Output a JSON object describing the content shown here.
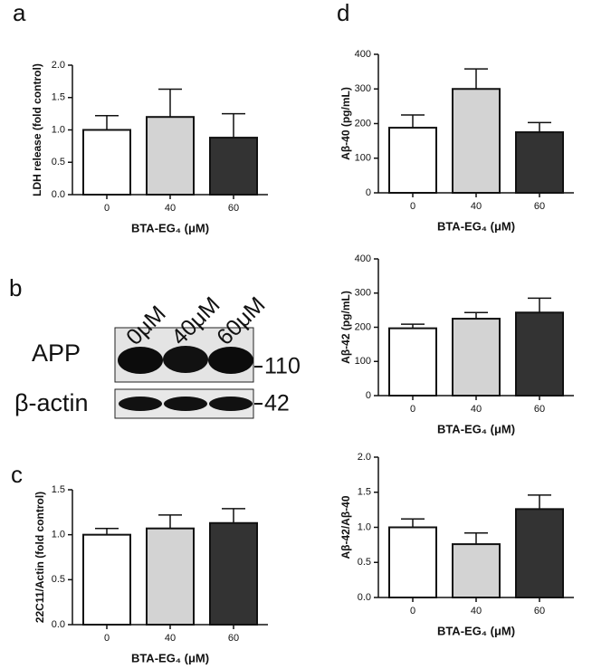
{
  "panels": [
    "a",
    "b",
    "c",
    "d"
  ],
  "blot": {
    "lanes": [
      "0μM",
      "40μM",
      "60μM"
    ],
    "rows": [
      "APP",
      "β-actin"
    ],
    "markers": [
      110,
      42
    ]
  },
  "chart_data": [
    {
      "type": "bar",
      "ylabel": "LDH release  (fold control)",
      "xlabel": "BTA-EG₄ (μM)",
      "categories": [
        "0",
        "40",
        "60"
      ],
      "values": [
        1.0,
        1.2,
        0.88
      ],
      "errors": [
        0.22,
        0.43,
        0.37
      ],
      "colors": [
        "#ffffff",
        "#d3d3d3",
        "#333333"
      ],
      "ylim": [
        0,
        2
      ],
      "yticks": [
        {
          "value": 0,
          "label": "0.0"
        },
        0.5,
        {
          "value": 1,
          "label": "1.0"
        },
        1.5,
        {
          "value": 2,
          "label": "2.0"
        }
      ]
    },
    {
      "type": "bar",
      "ylabel": "22C11/Actin (fold control)",
      "xlabel": "BTA-EG₄ (μM)",
      "categories": [
        "0",
        "40",
        "60"
      ],
      "values": [
        1.0,
        1.07,
        1.13
      ],
      "errors": [
        0.07,
        0.15,
        0.16
      ],
      "colors": [
        "#ffffff",
        "#d3d3d3",
        "#333333"
      ],
      "ylim": [
        0,
        1.5
      ],
      "yticks": [
        {
          "value": 0,
          "label": "0.0"
        },
        0.5,
        {
          "value": 1,
          "label": "1.0"
        },
        1.5
      ]
    },
    {
      "type": "bar",
      "ylabel": "Aβ-40 (pg/mL)",
      "xlabel": "BTA-EG₄ (μM)",
      "categories": [
        "0",
        "40",
        "60"
      ],
      "values": [
        188,
        300,
        175
      ],
      "errors": [
        37,
        58,
        28
      ],
      "colors": [
        "#ffffff",
        "#d3d3d3",
        "#333333"
      ],
      "ylim": [
        0,
        400
      ],
      "yticks": [
        0,
        100,
        200,
        300,
        400
      ]
    },
    {
      "type": "bar",
      "ylabel": "Aβ-42 (pg/mL)",
      "xlabel": "BTA-EG₄ (μM)",
      "categories": [
        "0",
        "40",
        "60"
      ],
      "values": [
        197,
        225,
        243
      ],
      "errors": [
        12,
        18,
        42
      ],
      "colors": [
        "#ffffff",
        "#d3d3d3",
        "#333333"
      ],
      "ylim": [
        0,
        400
      ],
      "yticks": [
        0,
        100,
        200,
        300,
        400
      ]
    },
    {
      "type": "bar",
      "ylabel": "Aβ-42/Aβ-40",
      "xlabel": "BTA-EG₄ (μM)",
      "categories": [
        "0",
        "40",
        "60"
      ],
      "values": [
        1.0,
        0.76,
        1.26
      ],
      "errors": [
        0.12,
        0.16,
        0.2
      ],
      "colors": [
        "#ffffff",
        "#d3d3d3",
        "#333333"
      ],
      "ylim": [
        0,
        2
      ],
      "yticks": [
        {
          "value": 0,
          "label": "0.0"
        },
        0.5,
        {
          "value": 1,
          "label": "1.0"
        },
        1.5,
        {
          "value": 2,
          "label": "2.0"
        }
      ]
    }
  ]
}
